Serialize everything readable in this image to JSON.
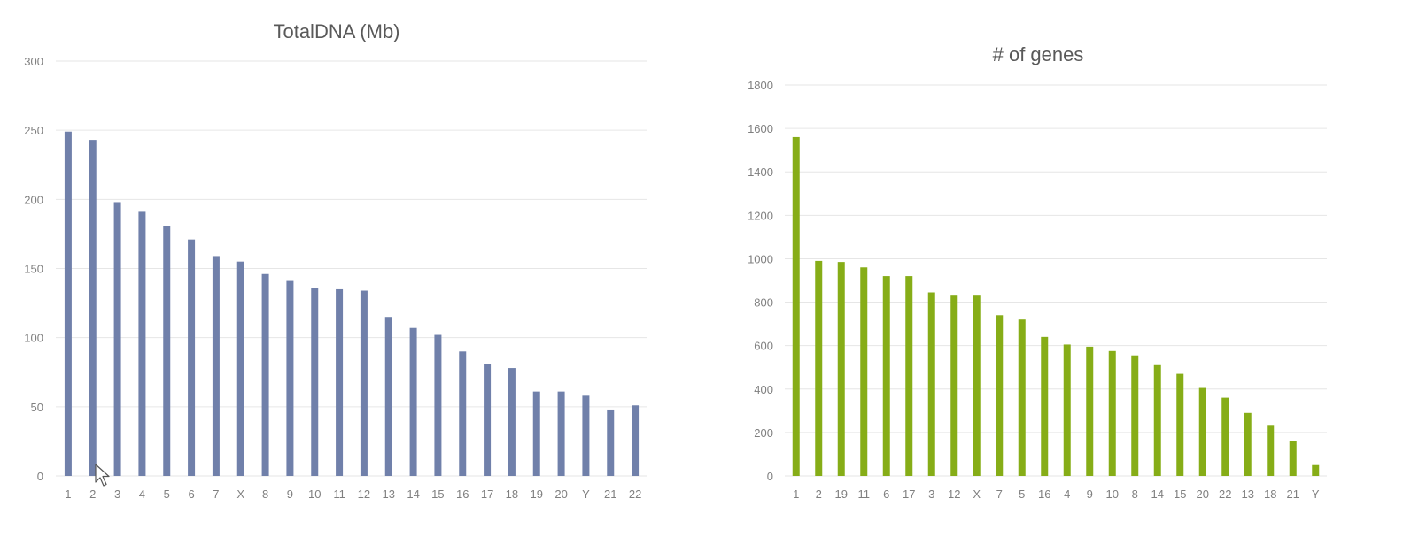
{
  "chart_data": [
    {
      "type": "bar",
      "title": "TotalDNA (Mb)",
      "xlabel": "",
      "ylabel": "",
      "categories": [
        "1",
        "2",
        "3",
        "4",
        "5",
        "6",
        "7",
        "X",
        "8",
        "9",
        "10",
        "11",
        "12",
        "13",
        "14",
        "15",
        "16",
        "17",
        "18",
        "19",
        "20",
        "Y",
        "21",
        "22"
      ],
      "values": [
        249,
        243,
        198,
        191,
        181,
        171,
        159,
        155,
        146,
        141,
        136,
        135,
        134,
        115,
        107,
        102,
        90,
        81,
        78,
        61,
        61,
        58,
        48,
        51
      ],
      "ylim": [
        0,
        300
      ],
      "yticks": [
        0,
        50,
        100,
        150,
        200,
        250,
        300
      ],
      "grid": true,
      "legend": "none",
      "color": "#7080aa"
    },
    {
      "type": "bar",
      "title": "# of genes",
      "xlabel": "",
      "ylabel": "",
      "categories": [
        "1",
        "2",
        "19",
        "11",
        "6",
        "17",
        "3",
        "12",
        "X",
        "7",
        "5",
        "16",
        "4",
        "9",
        "10",
        "8",
        "14",
        "15",
        "20",
        "22",
        "13",
        "18",
        "21",
        "Y"
      ],
      "values": [
        1560,
        990,
        985,
        960,
        920,
        920,
        845,
        830,
        830,
        740,
        720,
        640,
        605,
        595,
        575,
        555,
        510,
        470,
        405,
        360,
        290,
        235,
        160,
        50
      ],
      "ylim": [
        0,
        1800
      ],
      "yticks": [
        0,
        200,
        400,
        600,
        800,
        1000,
        1200,
        1400,
        1600,
        1800
      ],
      "grid": true,
      "legend": "none",
      "color": "#86ad17"
    }
  ]
}
